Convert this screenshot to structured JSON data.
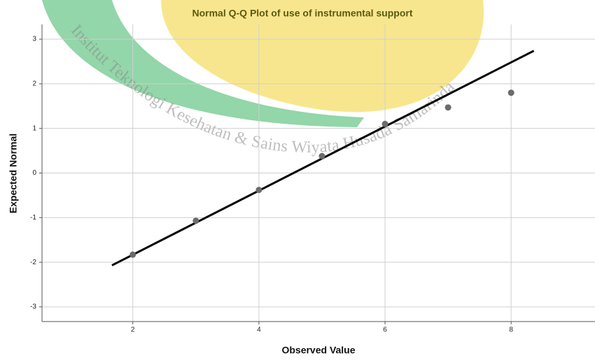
{
  "chart_data": {
    "type": "scatter",
    "title": "Normal Q-Q Plot of use of instrumental support",
    "xlabel": "Observed Value",
    "ylabel": "Expected Normal",
    "watermark": "Institut Teknologi Kesehatan & Sains Wiyata Husada Samarinda",
    "xlim": [
      0.56,
      9.33
    ],
    "ylim": [
      -3.33,
      3.33
    ],
    "xticks": [
      2,
      4,
      6,
      8
    ],
    "yticks": [
      -3,
      -2,
      -1,
      0,
      1,
      2,
      3
    ],
    "grid": true,
    "series": [
      {
        "color": "#6b6b6b",
        "x": [
          2,
          3,
          4,
          5,
          6,
          7,
          8
        ],
        "values": [
          -1.83,
          -1.07,
          -0.38,
          0.38,
          1.1,
          1.47,
          1.8
        ]
      }
    ],
    "reference_line": {
      "color": "#000000",
      "x": [
        1.67,
        8.36
      ],
      "values": [
        -2.07,
        2.74
      ]
    }
  }
}
